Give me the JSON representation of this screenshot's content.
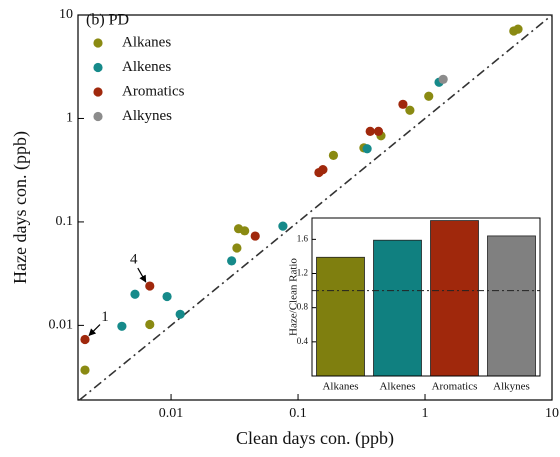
{
  "chart_data": [
    {
      "type": "scatter",
      "title": "(b) PD",
      "xlabel": "Clean days con. (ppb)",
      "ylabel": "Haze days con. (ppb)",
      "log_x": true,
      "log_y": true,
      "identity_line": true,
      "legend": "upper left",
      "xlim": [
        0.00185,
        10
      ],
      "ylim": [
        0.0019,
        10
      ],
      "xticks": [
        0.01,
        0.1,
        1,
        10
      ],
      "yticks": [
        0.01,
        0.1,
        1,
        10
      ],
      "series": [
        {
          "name": "Alkanes",
          "color": "#8a8a12",
          "x": [
            0.0021,
            0.0068,
            0.033,
            0.034,
            0.038,
            0.19,
            0.33,
            0.45,
            0.76,
            1.07,
            5.0,
            5.4
          ],
          "values": [
            0.0037,
            0.0102,
            0.056,
            0.086,
            0.082,
            0.44,
            0.52,
            0.68,
            1.2,
            1.64,
            7.0,
            7.3
          ]
        },
        {
          "name": "Alkenes",
          "color": "#168a8a",
          "x": [
            0.0041,
            0.0052,
            0.0093,
            0.0118,
            0.03,
            0.076,
            0.35,
            1.29
          ],
          "values": [
            0.0098,
            0.02,
            0.019,
            0.0128,
            0.042,
            0.091,
            0.51,
            2.24
          ]
        },
        {
          "name": "Aromatics",
          "color": "#a0280c",
          "x": [
            0.0021,
            0.0068,
            0.046,
            0.146,
            0.157,
            0.37,
            0.43,
            0.67
          ],
          "values": [
            0.0073,
            0.024,
            0.073,
            0.3,
            0.32,
            0.75,
            0.75,
            1.37
          ]
        },
        {
          "name": "Alkynes",
          "color": "#8c8c8c",
          "x": [
            1.39
          ],
          "values": [
            2.39
          ]
        }
      ],
      "annotations": [
        {
          "text": "1",
          "x": 0.0021,
          "y": 0.0073
        },
        {
          "text": "4",
          "x": 0.0068,
          "y": 0.024
        }
      ]
    },
    {
      "type": "bar",
      "ylabel": "Haze/Clean Ratio",
      "categories": [
        "Alkanes",
        "Alkenes",
        "Aromatics",
        "Alkynes"
      ],
      "values": [
        1.39,
        1.59,
        1.82,
        1.64
      ],
      "colors": [
        "#7f7f0f",
        "#108080",
        "#a0280c",
        "#808080"
      ],
      "ylim": [
        0,
        1.85
      ],
      "yticks": [
        0.4,
        0.8,
        1.2,
        1.6
      ],
      "reference_line": 1
    }
  ]
}
